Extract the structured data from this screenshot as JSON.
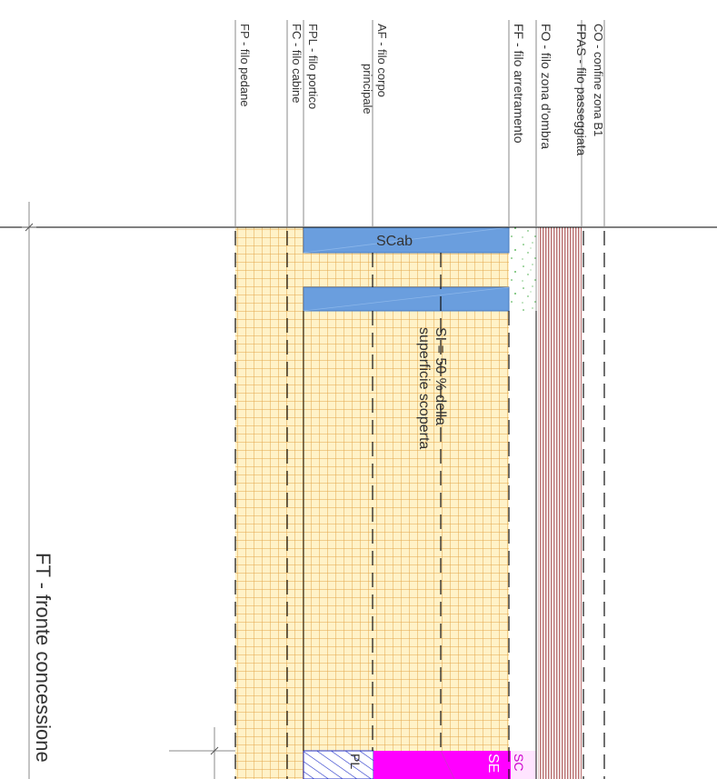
{
  "labels": {
    "co": "CO - confine zona B1",
    "fpas": "FPAS - filo passeggiata",
    "fo": "FO - filo zona d'ombra",
    "ff": "FF - filo arretramento",
    "af_line1": "AF - filo corpo",
    "af_line2": "principale",
    "fpl": "FPL - filo portico",
    "fc": "FC - filo cabine",
    "fp": "FP - filo pedane",
    "scab": "SCab",
    "si_line1": "SI = 50 % della",
    "si_line2": "superficie scoperta",
    "ft": "FT - fronte concessione",
    "pl_fragment": "PL",
    "se_fragment": "SE",
    "sc_fragment": "SC"
  },
  "colors": {
    "grid_fill": "#fff2c8",
    "grid_line": "#e3a64a",
    "cabin_blue": "#6a9ede",
    "hatch_red": "#9a3030",
    "green_speck": "#3aa83a",
    "magenta": "#ff00ff",
    "hatch_blue": "#2030c8"
  }
}
